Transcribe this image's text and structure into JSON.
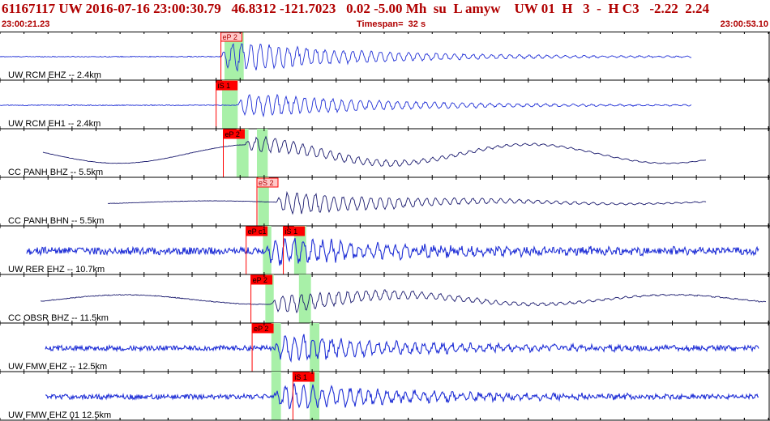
{
  "header": {
    "title": "61167117 UW 2016-07-16 23:00:30.79   46.8312 -121.7023   0.02 -5.00 Mh  su  L amyw    UW 01  H   3  -  H C3   -2.22  2.24",
    "start_time": "23:00:21.23",
    "timespan": "Timespan=  32 s",
    "end_time": "23:00:53.10"
  },
  "colors": {
    "title": "#b00000",
    "trace_blue": "#1f2fd6",
    "trace_navy": "#1a1a6e",
    "pick_red": "#ff0000",
    "pick_light": "#ffc8c8",
    "window_green": "#a8f0a8",
    "grid": "#000000"
  },
  "chart_data": {
    "type": "line",
    "title": "61167117 UW 2016-07-16 23:00:30.79",
    "x_unit": "s",
    "xlim": [
      0,
      32
    ],
    "x_start_label": "23:00:21.23",
    "x_end_label": "23:00:53.10",
    "grid": true,
    "series": [
      {
        "name": "UW RCM EHZ -- 2.4km",
        "component": "EHZ",
        "color": "trace_blue",
        "trace_start": 0,
        "trace_end": 28.8,
        "onset": 9.2,
        "amplitude": 0.75,
        "noise": 0.02,
        "long_period": 0,
        "picks": [
          {
            "label": "eP 2",
            "time": 9.2,
            "style": "outline"
          }
        ],
        "windows": [
          [
            9.35,
            10.15
          ]
        ]
      },
      {
        "name": "UW RCM EH1 -- 2.4km",
        "component": "EH1",
        "color": "trace_blue",
        "trace_start": 0,
        "trace_end": 28.8,
        "onset": 9.9,
        "amplitude": 0.6,
        "noise": 0.02,
        "long_period": 0,
        "picks": [
          {
            "label": "iS 1",
            "time": 9.0,
            "style": "filled"
          }
        ],
        "windows": [
          [
            9.25,
            9.9
          ]
        ]
      },
      {
        "name": "CC PANH BHZ -- 5.5km",
        "component": "BHZ",
        "color": "trace_navy",
        "trace_start": 1.8,
        "trace_end": 29.4,
        "onset": 10.2,
        "amplitude": 0.4,
        "noise": 0.01,
        "long_period": 0.5,
        "picks": [
          {
            "label": "eP 2",
            "time": 9.3,
            "style": "filled"
          }
        ],
        "windows": [
          [
            9.85,
            10.35
          ],
          [
            10.7,
            11.15
          ]
        ]
      },
      {
        "name": "CC PANH BHN -- 5.5km",
        "component": "BHN",
        "color": "trace_navy",
        "trace_start": 4.5,
        "trace_end": 29.4,
        "onset": 11.5,
        "amplitude": 0.55,
        "noise": 0.01,
        "long_period": 0.08,
        "picks": [
          {
            "label": "eS 2",
            "time": 10.7,
            "style": "outline"
          }
        ],
        "windows": [
          [
            10.75,
            11.2
          ]
        ]
      },
      {
        "name": "UW RER EHZ -- 10.7km",
        "component": "EHZ",
        "color": "trace_blue",
        "trace_start": 1.1,
        "trace_end": 31.6,
        "onset": 11.0,
        "amplitude": 0.65,
        "noise": 0.18,
        "long_period": 0,
        "picks": [
          {
            "label": "eP c1",
            "time": 10.25,
            "style": "filled"
          },
          {
            "label": "iS 1",
            "time": 11.8,
            "style": "filled"
          }
        ],
        "windows": [
          [
            10.95,
            11.3
          ],
          [
            12.25,
            12.75
          ]
        ]
      },
      {
        "name": "CC OBSR BHZ -- 11.5km",
        "component": "BHZ",
        "color": "trace_navy",
        "trace_start": 1.7,
        "trace_end": 31.9,
        "onset": 11.3,
        "amplitude": 0.5,
        "noise": 0.02,
        "long_period": 0.25,
        "picks": [
          {
            "label": "eP 2",
            "time": 10.45,
            "style": "filled"
          }
        ],
        "windows": [
          [
            11.05,
            11.4
          ],
          [
            12.45,
            12.95
          ]
        ]
      },
      {
        "name": "UW FMW EHZ -- 12.5km",
        "component": "EHZ",
        "color": "trace_blue",
        "trace_start": 1.9,
        "trace_end": 31.6,
        "onset": 11.4,
        "amplitude": 0.65,
        "noise": 0.12,
        "long_period": 0,
        "picks": [
          {
            "label": "eP 2",
            "time": 10.5,
            "style": "filled"
          }
        ],
        "windows": [
          [
            11.3,
            11.7
          ],
          [
            12.9,
            13.3
          ]
        ]
      },
      {
        "name": "UW FMW EHZ 01 12.5km",
        "component": "EHZ",
        "color": "trace_blue",
        "trace_start": 1.9,
        "trace_end": 31.6,
        "onset": 11.4,
        "amplitude": 0.65,
        "noise": 0.12,
        "long_period": 0,
        "picks": [
          {
            "label": "iS 1",
            "time": 12.2,
            "style": "filled"
          }
        ],
        "windows": [
          [
            11.3,
            11.7
          ],
          [
            12.9,
            13.3
          ]
        ]
      }
    ]
  }
}
